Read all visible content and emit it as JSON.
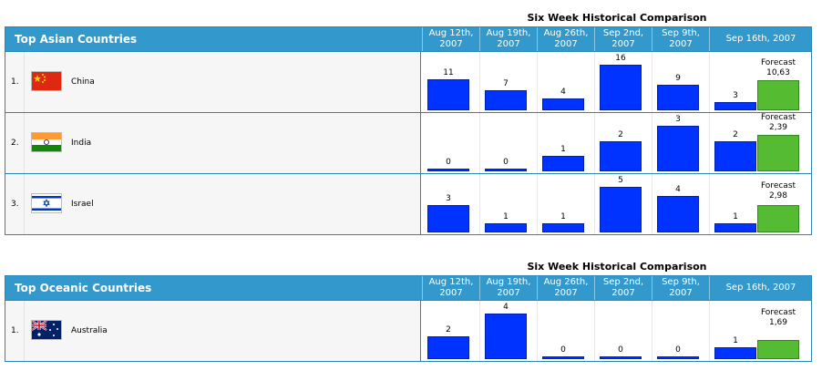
{
  "comparison_title": "Six Week Historical Comparison",
  "weeks": [
    "Aug 12th, 2007",
    "Aug 19th, 2007",
    "Aug 26th, 2007",
    "Sep 2nd, 2007",
    "Sep 9th, 2007",
    "Sep 16th, 2007"
  ],
  "forecast_label": "Forecast",
  "colors": {
    "header": "#3399cc",
    "bar": "#0033ff",
    "forecast_bar": "#55bb33"
  },
  "sections": [
    {
      "title": "Top Asian Countries",
      "rows": [
        {
          "rank": "1.",
          "country": "China",
          "flag": "china-flag",
          "values": [
            11,
            7,
            4,
            16,
            9,
            3
          ],
          "forecast": "10,63",
          "forecast_value": 10.63
        },
        {
          "rank": "2.",
          "country": "India",
          "flag": "india-flag",
          "values": [
            0,
            0,
            1,
            2,
            3,
            2
          ],
          "forecast": "2,39",
          "forecast_value": 2.39
        },
        {
          "rank": "3.",
          "country": "Israel",
          "flag": "israel-flag",
          "values": [
            3,
            1,
            1,
            5,
            4,
            1
          ],
          "forecast": "2,98",
          "forecast_value": 2.98
        }
      ]
    },
    {
      "title": "Top Oceanic Countries",
      "rows": [
        {
          "rank": "1.",
          "country": "Australia",
          "flag": "australia-flag",
          "values": [
            2,
            4,
            0,
            0,
            0,
            1
          ],
          "forecast": "1,69",
          "forecast_value": 1.69
        }
      ]
    }
  ]
}
